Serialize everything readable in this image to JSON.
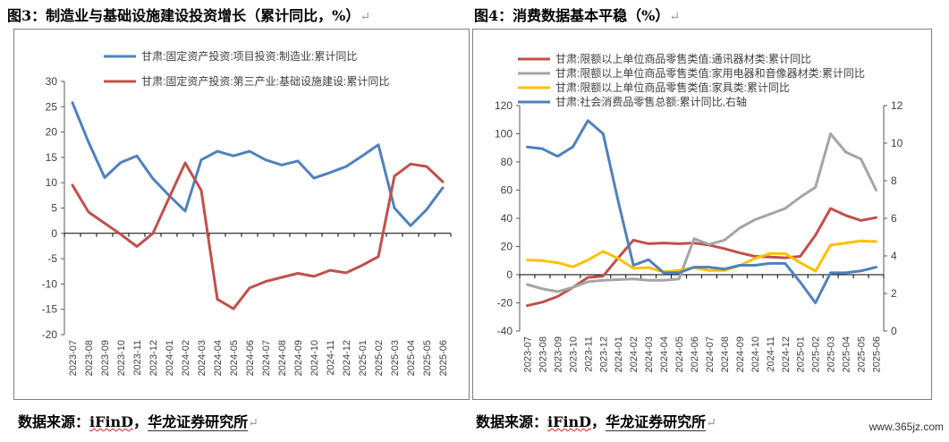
{
  "figures": [
    {
      "title": "图3：制造业与基础设施建设投资增长（累计同比，%）"
    },
    {
      "title": "图4：消费数据基本平稳（%）"
    }
  ],
  "return_mark": "↵",
  "source": {
    "prefix": "数据来源：",
    "ifind": "iFinD",
    "sep": "，",
    "org": "华龙证券研究所"
  },
  "watermark": "www.365jz.com",
  "chart_data": [
    {
      "type": "line",
      "title": "图3：制造业与基础设施建设投资增长（累计同比，%）",
      "categories": [
        "2023-07",
        "2023-08",
        "2023-09",
        "2023-10",
        "2023-11",
        "2023-12",
        "2024-01",
        "2024-02",
        "2024-03",
        "2024-04",
        "2024-05",
        "2024-06",
        "2024-07",
        "2024-08",
        "2024-09",
        "2024-10",
        "2024-11",
        "2024-12",
        "2025-01",
        "2025-02",
        "2025-03",
        "2025-04",
        "2025-05",
        "2025-06"
      ],
      "ylim": [
        -20,
        30
      ],
      "yticks": [
        30,
        25,
        20,
        15,
        10,
        5,
        0,
        -5,
        -10,
        -15,
        -20
      ],
      "grid": false,
      "legend": "top",
      "series": [
        {
          "name": "甘肃:固定资产投资:项目投资:制造业:累计同比",
          "color": "#4f81bd",
          "values": [
            25.8,
            18.0,
            11.0,
            14.0,
            15.3,
            10.8,
            7.5,
            4.4,
            14.5,
            16.2,
            15.3,
            16.2,
            14.5,
            13.5,
            14.3,
            10.9,
            12.0,
            13.2,
            15.3,
            17.5,
            5.0,
            1.5,
            4.7,
            9.0
          ]
        },
        {
          "name": "甘肃:固定资产投资:第三产业:基础设施建设:累计同比",
          "color": "#c0504d",
          "values": [
            9.5,
            4.2,
            2.0,
            -0.2,
            -2.6,
            0.0,
            7.0,
            13.9,
            8.5,
            -13.0,
            -14.9,
            -10.8,
            -9.5,
            -8.7,
            -7.9,
            -8.5,
            -7.3,
            -7.8,
            -6.3,
            -4.6,
            11.3,
            13.7,
            13.2,
            10.2
          ]
        }
      ]
    },
    {
      "type": "line",
      "title": "图4：消费数据基本平稳（%）",
      "categories": [
        "2023-07",
        "2023-08",
        "2023-09",
        "2023-10",
        "2023-11",
        "2023-12",
        "2024-01",
        "2024-02",
        "2024-03",
        "2024-04",
        "2024-05",
        "2024-06",
        "2024-07",
        "2024-08",
        "2024-09",
        "2024-10",
        "2024-11",
        "2024-12",
        "2025-01",
        "2025-02",
        "2025-03",
        "2025-04",
        "2025-05",
        "2025-06"
      ],
      "ylim": [
        -40,
        120
      ],
      "yticks": [
        120,
        100,
        80,
        60,
        40,
        20,
        0,
        -20,
        -40
      ],
      "y2lim": [
        0,
        12
      ],
      "y2ticks": [
        12,
        10,
        8,
        6,
        4,
        2,
        0
      ],
      "grid": false,
      "legend": "top",
      "series": [
        {
          "name": "甘肃:限额以上单位商品零售类值:通讯器材类:累计同比",
          "color": "#c0504d",
          "axis": "left",
          "values": [
            -22.0,
            -19.5,
            -15.5,
            -9.0,
            -2.0,
            -1.0,
            12.0,
            24.5,
            22.0,
            22.5,
            22.0,
            22.5,
            21.0,
            18.5,
            15.5,
            13.0,
            12.5,
            12.0,
            13.0,
            28.0,
            47.0,
            42.0,
            38.5,
            40.5
          ]
        },
        {
          "name": "甘肃:限额以上单位商品零售类值:家用电器和音像器材类:累计同比",
          "color": "#a5a5a5",
          "axis": "left",
          "values": [
            -7.0,
            -10.0,
            -12.0,
            -9.0,
            -5.0,
            -4.0,
            -3.5,
            -3.0,
            -4.0,
            -4.0,
            -3.0,
            25.5,
            21.5,
            24.5,
            33.0,
            39.0,
            43.0,
            47.0,
            55.0,
            62.0,
            100.0,
            87.0,
            82.0,
            60.0
          ]
        },
        {
          "name": "甘肃:限额以上单位商品零售类值:家具类:累计同比",
          "color": "#ffc000",
          "axis": "left",
          "values": [
            10.5,
            10.0,
            8.5,
            5.5,
            10.5,
            16.5,
            11.5,
            4.5,
            5.0,
            2.0,
            3.0,
            5.0,
            3.0,
            3.0,
            6.5,
            11.5,
            15.0,
            15.0,
            8.5,
            2.5,
            21.0,
            22.5,
            24.0,
            23.5
          ]
        },
        {
          "name": "甘肃:社会消费品零售总额:累计同比,右轴",
          "color": "#4f81bd",
          "axis": "right",
          "values": [
            9.8,
            9.7,
            9.3,
            9.8,
            11.2,
            10.5,
            6.9,
            3.5,
            3.8,
            3.1,
            3.1,
            3.4,
            3.4,
            3.3,
            3.5,
            3.5,
            3.6,
            3.6,
            2.6,
            1.5,
            3.1,
            3.1,
            3.2,
            3.4
          ]
        }
      ]
    }
  ]
}
